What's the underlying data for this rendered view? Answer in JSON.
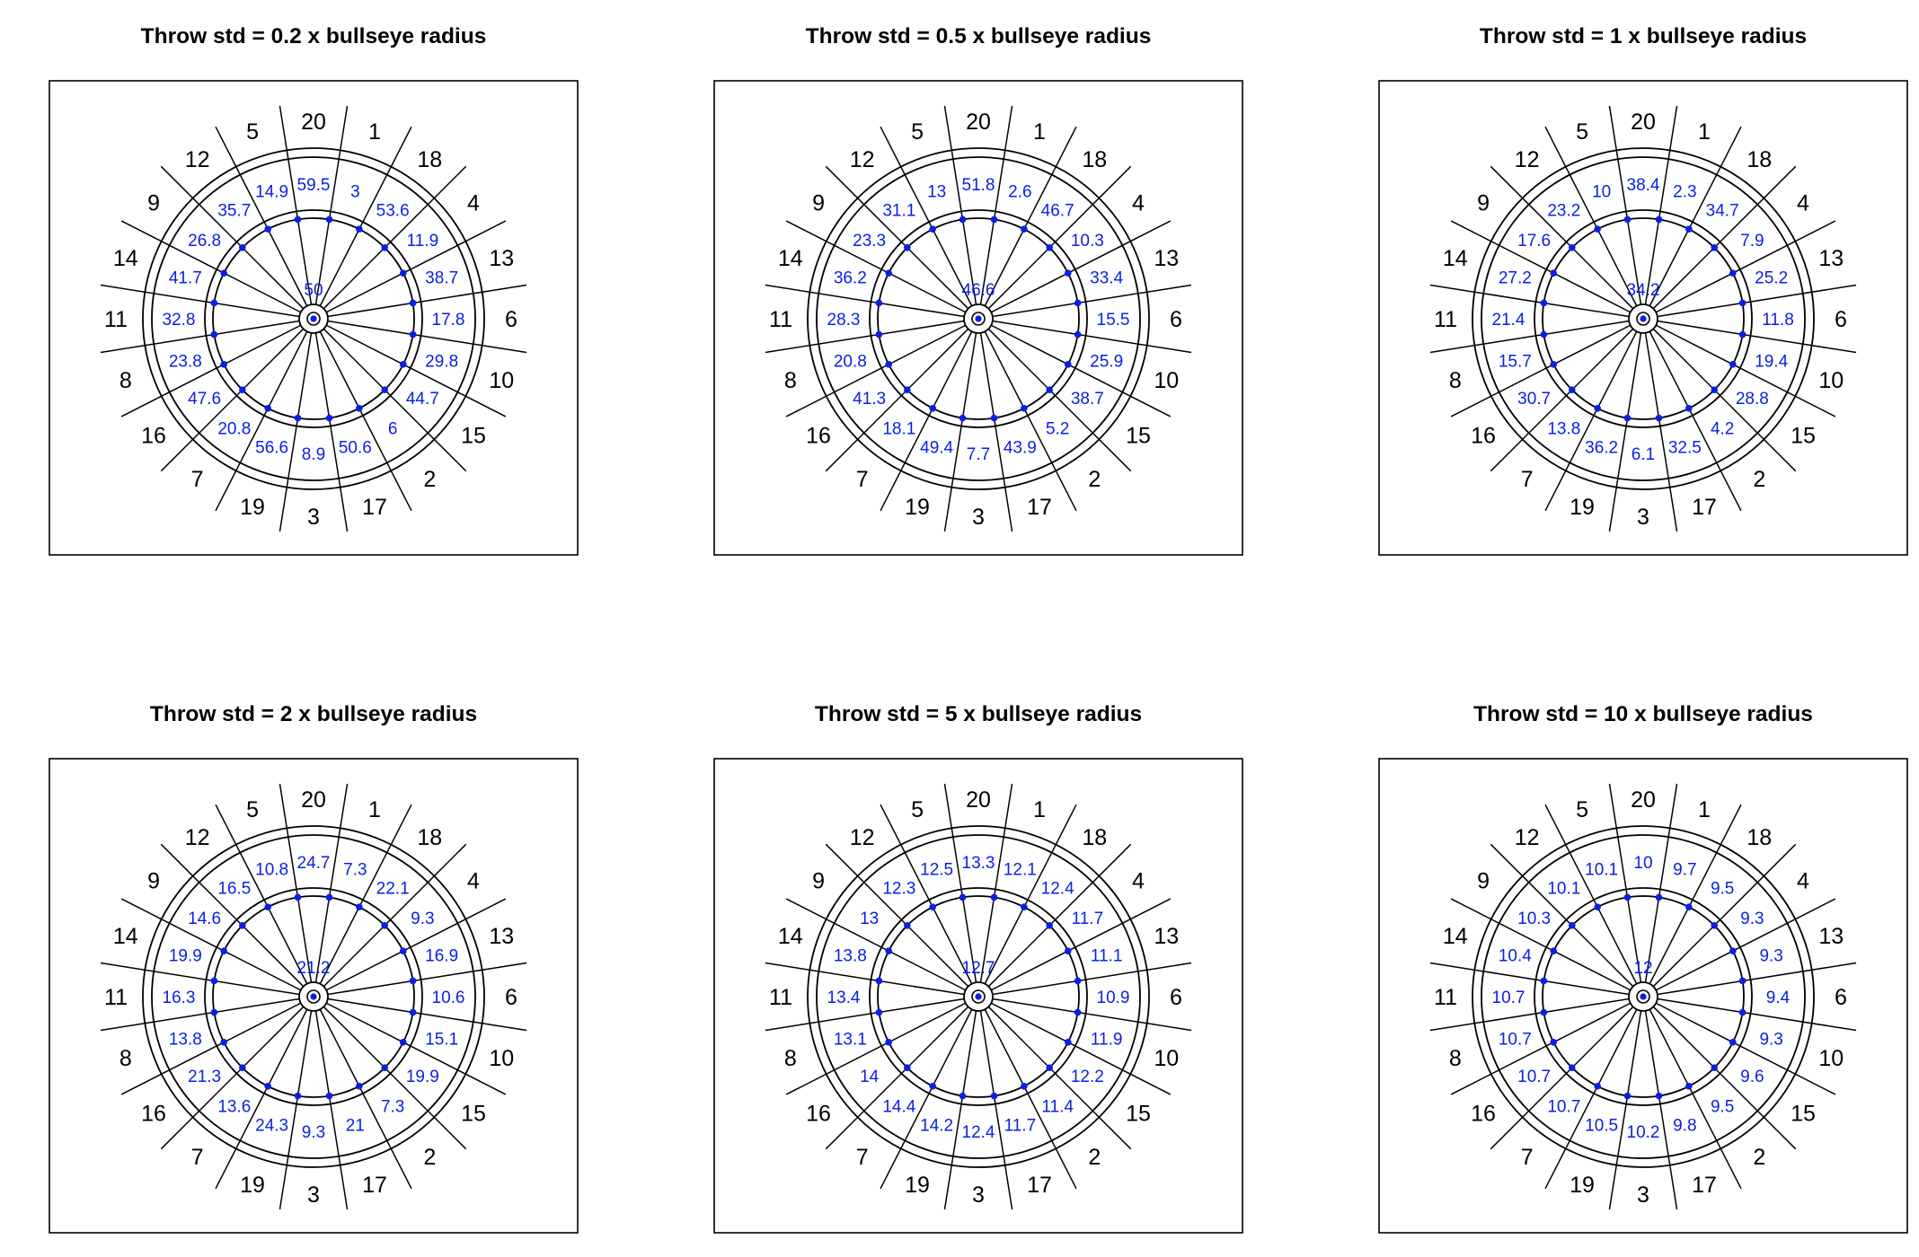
{
  "figure": {
    "panel_titles": [
      "Throw std = 0.2 x bullseye radius",
      "Throw std = 0.5 x bullseye radius",
      "Throw std = 1 x bullseye radius",
      "Throw std = 2 x bullseye radius",
      "Throw std = 5 x bullseye radius",
      "Throw std = 10 x bullseye radius"
    ],
    "board_numbers_clockwise_from_top": [
      "20",
      "1",
      "18",
      "4",
      "13",
      "6",
      "10",
      "15",
      "2",
      "17",
      "3",
      "19",
      "7",
      "16",
      "8",
      "11",
      "14",
      "9",
      "12",
      "5"
    ],
    "colors": {
      "ink": "#000000",
      "value_text": "#0a1fe6",
      "marker": "#0a1fe6"
    }
  },
  "panels": [
    {
      "title": "Throw std = 0.2 x bullseye radius",
      "bull_value": "50",
      "sector_values": [
        "59.5",
        "3",
        "53.6",
        "11.9",
        "38.7",
        "17.8",
        "29.8",
        "44.7",
        "6",
        "50.6",
        "8.9",
        "56.6",
        "20.8",
        "47.6",
        "23.8",
        "32.8",
        "41.7",
        "26.8",
        "35.7",
        "14.9"
      ]
    },
    {
      "title": "Throw std = 0.5 x bullseye radius",
      "bull_value": "46.6",
      "sector_values": [
        "51.8",
        "2.6",
        "46.7",
        "10.3",
        "33.4",
        "15.5",
        "25.9",
        "38.7",
        "5.2",
        "43.9",
        "7.7",
        "49.4",
        "18.1",
        "41.3",
        "20.8",
        "28.3",
        "36.2",
        "23.3",
        "31.1",
        "13"
      ]
    },
    {
      "title": "Throw std = 1 x bullseye radius",
      "bull_value": "34.2",
      "sector_values": [
        "38.4",
        "2.3",
        "34.7",
        "7.9",
        "25.2",
        "11.8",
        "19.4",
        "28.8",
        "4.2",
        "32.5",
        "6.1",
        "36.2",
        "13.8",
        "30.7",
        "15.7",
        "21.4",
        "27.2",
        "17.6",
        "23.2",
        "10"
      ]
    },
    {
      "title": "Throw std = 2 x bullseye radius",
      "bull_value": "21.2",
      "sector_values": [
        "24.7",
        "7.3",
        "22.1",
        "9.3",
        "16.9",
        "10.6",
        "15.1",
        "19.9",
        "7.3",
        "21",
        "9.3",
        "24.3",
        "13.6",
        "21.3",
        "13.8",
        "16.3",
        "19.9",
        "14.6",
        "16.5",
        "10.8"
      ]
    },
    {
      "title": "Throw std = 5 x bullseye radius",
      "bull_value": "12.7",
      "sector_values": [
        "13.3",
        "12.1",
        "12.4",
        "11.7",
        "11.1",
        "10.9",
        "11.9",
        "12.2",
        "11.4",
        "11.7",
        "12.4",
        "14.2",
        "14.4",
        "14",
        "13.1",
        "13.4",
        "13.8",
        "13",
        "12.3",
        "12.5"
      ]
    },
    {
      "title": "Throw std = 10 x bullseye radius",
      "bull_value": "12",
      "sector_values": [
        "10",
        "9.7",
        "9.5",
        "9.3",
        "9.3",
        "9.4",
        "9.3",
        "9.6",
        "9.5",
        "9.8",
        "10.2",
        "10.5",
        "10.7",
        "10.7",
        "10.7",
        "10.7",
        "10.4",
        "10.3",
        "10.1",
        "10.1"
      ]
    }
  ]
}
